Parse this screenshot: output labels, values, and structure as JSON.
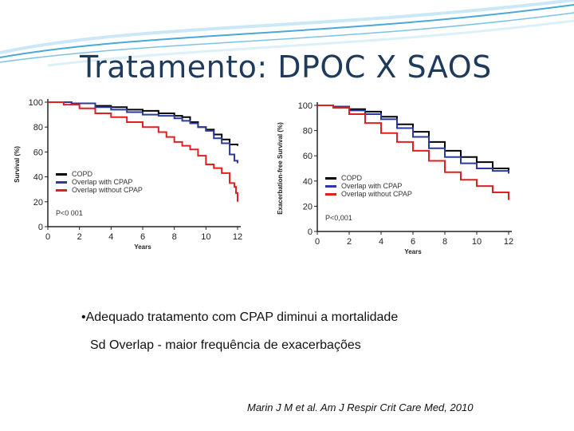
{
  "slide": {
    "title": "Tratamento: DPOC X SAOS",
    "bullet_1": "•Adequado tratamento com CPAP diminui a mortalidade",
    "bullet_2": "Sd Overlap - maior frequência de exacerbações",
    "citation": "Marin J M et al. Am J Respir Crit Care Med, 2010"
  },
  "colors": {
    "title": "#1f3b5c",
    "copd": "#000000",
    "cpap": "#2b3a9e",
    "no_cpap": "#e02020",
    "wave": "#4aa8d8"
  },
  "chart_data": [
    {
      "type": "line",
      "ylabel": "Survival (%)",
      "xlabel": "Years",
      "xlim": [
        0,
        12
      ],
      "ylim": [
        0,
        100
      ],
      "xticks": [
        0,
        2,
        4,
        6,
        8,
        10,
        12
      ],
      "yticks": [
        0,
        20,
        40,
        60,
        80,
        100
      ],
      "legend": [
        "COPD",
        "Overlap with CPAP",
        "Overlap without CPAP"
      ],
      "annotation": "P<0 001",
      "series": [
        {
          "name": "COPD",
          "color": "#000000",
          "x": [
            0,
            1.5,
            3,
            4,
            5,
            6,
            7,
            8,
            8.5,
            9,
            9.5,
            10,
            10.5,
            11,
            11.5,
            12
          ],
          "y": [
            100,
            99,
            97,
            96,
            94,
            93,
            91,
            89,
            88,
            84,
            80,
            78,
            74,
            70,
            66,
            65
          ]
        },
        {
          "name": "Overlap with CPAP",
          "color": "#2b3a9e",
          "x": [
            0,
            1.5,
            3,
            4,
            5,
            6,
            7,
            8,
            8.5,
            9,
            9.5,
            10,
            10.5,
            11,
            11.5,
            11.8,
            12
          ],
          "y": [
            100,
            99,
            96,
            94,
            92,
            90,
            89,
            87,
            85,
            83,
            80,
            77,
            71,
            67,
            58,
            53,
            51
          ]
        },
        {
          "name": "Overlap without CPAP",
          "color": "#e02020",
          "x": [
            0,
            1,
            2,
            3,
            4,
            5,
            6,
            7,
            7.5,
            8,
            8.5,
            9,
            9.5,
            10,
            10.5,
            11,
            11.5,
            11.8,
            11.9,
            12
          ],
          "y": [
            100,
            98,
            95,
            91,
            88,
            84,
            80,
            76,
            72,
            68,
            65,
            62,
            57,
            50,
            47,
            43,
            35,
            32,
            27,
            20
          ]
        }
      ]
    },
    {
      "type": "line",
      "ylabel": "Exacerbation-free Survival (%)",
      "xlabel": "Years",
      "xlim": [
        0,
        12
      ],
      "ylim": [
        0,
        100
      ],
      "xticks": [
        0,
        2,
        4,
        6,
        8,
        10,
        12
      ],
      "yticks": [
        0,
        20,
        40,
        60,
        80,
        100
      ],
      "legend": [
        "COPD",
        "Overlap with CPAP",
        "Overlap without CPAP"
      ],
      "annotation": "P<0,001",
      "series": [
        {
          "name": "COPD",
          "color": "#000000",
          "x": [
            0,
            1,
            2,
            3,
            4,
            5,
            6,
            7,
            8,
            9,
            10,
            11,
            12
          ],
          "y": [
            100,
            99,
            97,
            95,
            91,
            85,
            79,
            71,
            64,
            59,
            55,
            50,
            46
          ]
        },
        {
          "name": "Overlap with CPAP",
          "color": "#2b3a9e",
          "x": [
            0,
            1,
            2,
            3,
            4,
            5,
            6,
            7,
            8,
            9,
            10,
            11,
            12
          ],
          "y": [
            100,
            99,
            96,
            93,
            89,
            82,
            75,
            66,
            59,
            54,
            50,
            48,
            46
          ]
        },
        {
          "name": "Overlap without CPAP",
          "color": "#e02020",
          "x": [
            0,
            1,
            2,
            3,
            4,
            5,
            6,
            7,
            8,
            9,
            10,
            11,
            12
          ],
          "y": [
            100,
            98,
            93,
            86,
            78,
            71,
            64,
            56,
            47,
            41,
            36,
            31,
            25
          ]
        }
      ]
    }
  ]
}
